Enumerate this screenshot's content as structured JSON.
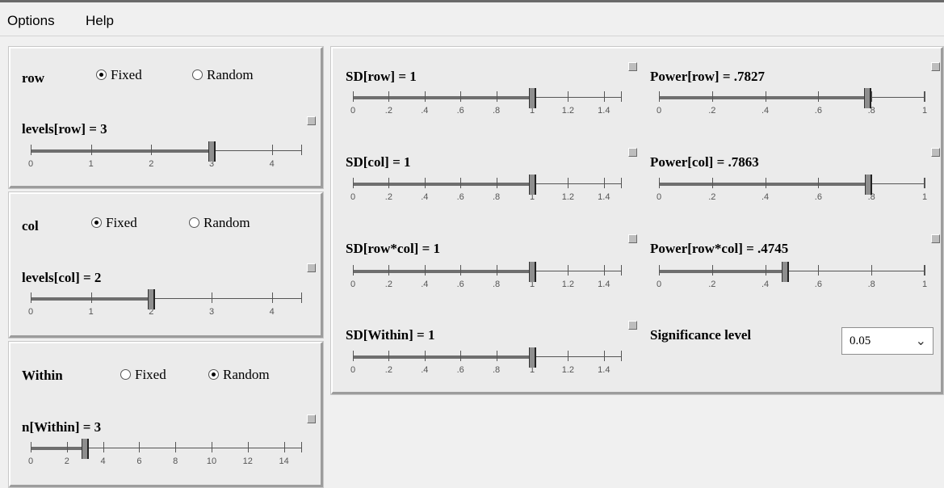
{
  "menu": {
    "options": "Options",
    "help": "Help"
  },
  "factors": [
    {
      "name": "row",
      "fixed_label": "Fixed",
      "random_label": "Random",
      "selected": "fixed",
      "levels_label": "levels[row] = 3",
      "slider": {
        "value": 3,
        "min": 0,
        "max": 4.5,
        "ticks": [
          "0",
          "1",
          "2",
          "3",
          "4"
        ]
      }
    },
    {
      "name": "col",
      "fixed_label": "Fixed",
      "random_label": "Random",
      "selected": "fixed",
      "levels_label": "levels[col] = 2",
      "slider": {
        "value": 2,
        "min": 0,
        "max": 4.5,
        "ticks": [
          "0",
          "1",
          "2",
          "3",
          "4"
        ]
      }
    },
    {
      "name": "Within",
      "fixed_label": "Fixed",
      "random_label": "Random",
      "selected": "random",
      "levels_label": "n[Within] = 3",
      "slider": {
        "value": 3,
        "min": 0,
        "max": 15,
        "ticks": [
          "0",
          "2",
          "4",
          "6",
          "8",
          "10",
          "12",
          "14"
        ]
      }
    }
  ],
  "sd": [
    {
      "label": "SD[row] = 1",
      "value": 1,
      "min": 0,
      "max": 1.5,
      "ticks": [
        "0",
        ".2",
        ".4",
        ".6",
        ".8",
        "1",
        "1.2",
        "1.4"
      ]
    },
    {
      "label": "SD[col] = 1",
      "value": 1,
      "min": 0,
      "max": 1.5,
      "ticks": [
        "0",
        ".2",
        ".4",
        ".6",
        ".8",
        "1",
        "1.2",
        "1.4"
      ]
    },
    {
      "label": "SD[row*col] = 1",
      "value": 1,
      "min": 0,
      "max": 1.5,
      "ticks": [
        "0",
        ".2",
        ".4",
        ".6",
        ".8",
        "1",
        "1.2",
        "1.4"
      ]
    },
    {
      "label": "SD[Within] = 1",
      "value": 1,
      "min": 0,
      "max": 1.5,
      "ticks": [
        "0",
        ".2",
        ".4",
        ".6",
        ".8",
        "1",
        "1.2",
        "1.4"
      ]
    }
  ],
  "power": [
    {
      "label": "Power[row] = .7827",
      "value": 0.7827,
      "min": 0,
      "max": 1,
      "ticks": [
        "0",
        ".2",
        ".4",
        ".6",
        ".8",
        "1"
      ]
    },
    {
      "label": "Power[col] = .7863",
      "value": 0.7863,
      "min": 0,
      "max": 1,
      "ticks": [
        "0",
        ".2",
        ".4",
        ".6",
        ".8",
        "1"
      ]
    },
    {
      "label": "Power[row*col] = .4745",
      "value": 0.4745,
      "min": 0,
      "max": 1,
      "ticks": [
        "0",
        ".2",
        ".4",
        ".6",
        ".8",
        "1"
      ]
    }
  ],
  "significance": {
    "label": "Significance level",
    "value": "0.05"
  }
}
